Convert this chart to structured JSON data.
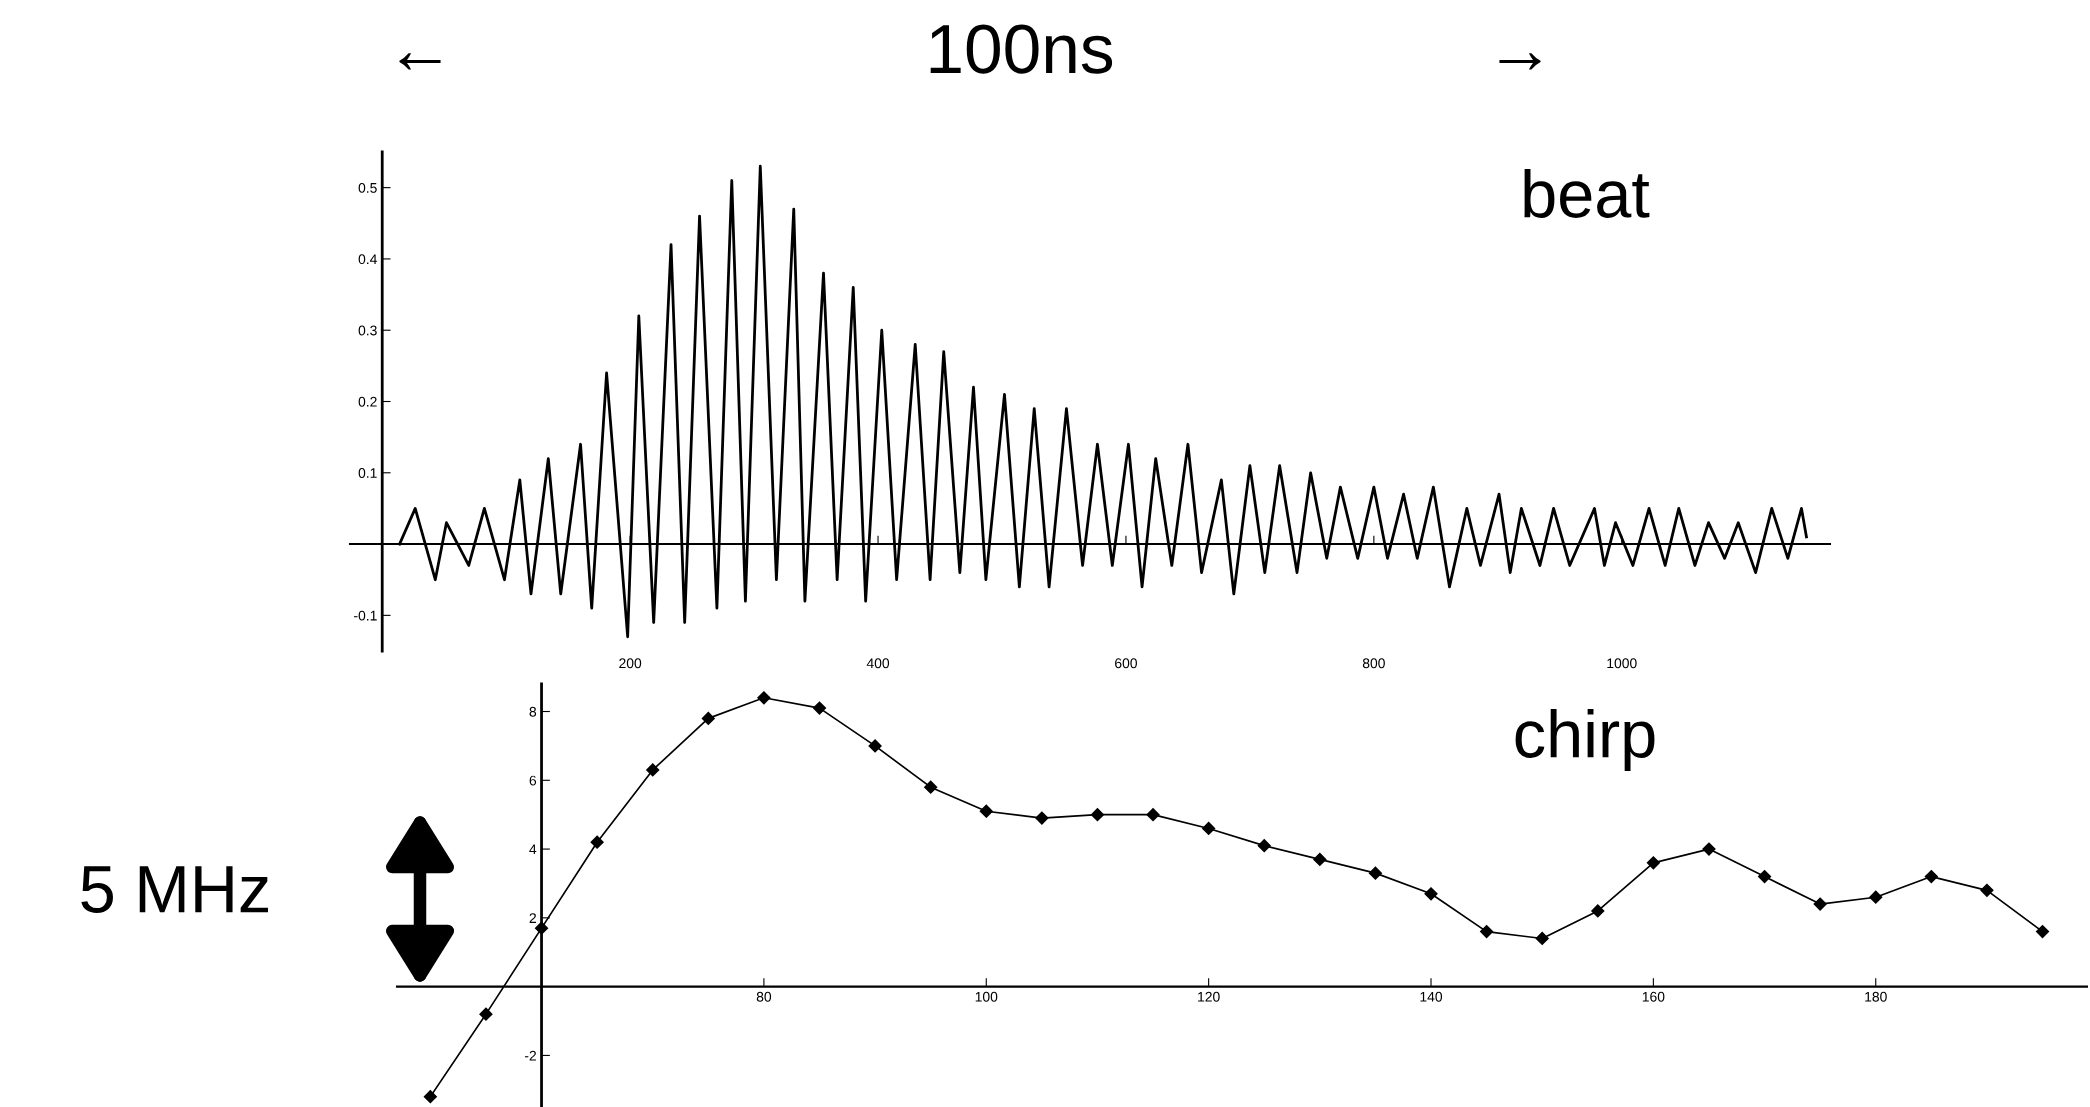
{
  "chart_data": [
    {
      "type": "line",
      "annotations": [
        "←",
        "100ns",
        "→",
        "beat"
      ],
      "x": [
        14,
        26.6,
        42.8,
        51.8,
        69.8,
        82.4,
        98.6,
        111,
        120,
        134,
        144,
        160,
        169,
        181,
        198,
        207,
        219,
        233,
        244,
        256,
        270,
        282,
        293,
        305,
        318,
        332,
        341,
        356,
        367,
        380,
        390,
        403,
        415,
        430,
        442,
        453,
        466,
        477,
        487,
        502,
        514,
        526,
        538,
        552,
        565,
        577,
        589,
        602,
        613,
        624,
        637,
        650,
        661,
        677,
        687,
        700,
        712,
        724,
        738,
        749,
        762,
        773,
        787,
        800,
        811,
        824,
        835,
        848,
        861,
        875,
        886,
        901,
        910,
        919,
        934,
        945,
        958,
        978,
        986,
        995,
        1009,
        1022,
        1035,
        1046,
        1059,
        1070,
        1083,
        1094,
        1108,
        1121,
        1134,
        1145,
        1149
      ],
      "series": [
        {
          "color": "#000000",
          "values": [
            0.0,
            0.05,
            -0.05,
            0.03,
            -0.03,
            0.05,
            -0.05,
            0.09,
            -0.07,
            0.12,
            -0.07,
            0.14,
            -0.09,
            0.24,
            -0.13,
            0.32,
            -0.11,
            0.42,
            -0.11,
            0.46,
            -0.09,
            0.51,
            -0.08,
            0.53,
            -0.05,
            0.47,
            -0.08,
            0.38,
            -0.05,
            0.36,
            -0.08,
            0.3,
            -0.05,
            0.28,
            -0.05,
            0.27,
            -0.04,
            0.22,
            -0.05,
            0.21,
            -0.06,
            0.19,
            -0.06,
            0.19,
            -0.03,
            0.14,
            -0.03,
            0.14,
            -0.06,
            0.12,
            -0.03,
            0.14,
            -0.04,
            0.09,
            -0.07,
            0.11,
            -0.04,
            0.11,
            -0.04,
            0.1,
            -0.02,
            0.08,
            -0.02,
            0.08,
            -0.02,
            0.07,
            -0.02,
            0.08,
            -0.06,
            0.05,
            -0.03,
            0.07,
            -0.04,
            0.05,
            -0.03,
            0.05,
            -0.03,
            0.05,
            -0.03,
            0.03,
            -0.03,
            0.05,
            -0.03,
            0.05,
            -0.03,
            0.03,
            -0.02,
            0.03,
            -0.04,
            0.05,
            -0.02,
            0.05,
            0.01
          ]
        }
      ],
      "xlim": [
        -26,
        1168
      ],
      "ylim": [
        -0.15,
        0.55
      ],
      "xticks": [
        200,
        400,
        600,
        800,
        1000
      ],
      "yticks": [
        -0.1,
        0.1,
        0.2,
        0.3,
        0.4,
        0.5
      ],
      "grid": false,
      "legend": false,
      "marker": "none",
      "line_style": "solid"
    },
    {
      "type": "line",
      "annotations": [
        "chirp",
        "5 MHz"
      ],
      "x": [
        50,
        55,
        60,
        65,
        70,
        75,
        80,
        85,
        90,
        95,
        100,
        105,
        110,
        115,
        120,
        125,
        130,
        135,
        140,
        145,
        150,
        155,
        160,
        165,
        170,
        175,
        180,
        185,
        190,
        195
      ],
      "series": [
        {
          "color": "#000000",
          "values": [
            -3.2,
            -0.8,
            1.7,
            4.2,
            6.3,
            7.8,
            8.4,
            8.1,
            7.0,
            5.8,
            5.1,
            4.9,
            5.0,
            5.0,
            4.6,
            4.1,
            3.7,
            3.3,
            2.7,
            1.6,
            1.4,
            2.2,
            3.6,
            4.0,
            3.2,
            2.4,
            2.6,
            3.2,
            2.8,
            1.6
          ]
        }
      ],
      "xlim": [
        47,
        199
      ],
      "ylim": [
        -3.5,
        8.8
      ],
      "xticks": [
        80,
        100,
        120,
        140,
        160,
        180
      ],
      "yticks": [
        -2,
        2,
        4,
        6,
        8
      ],
      "grid": false,
      "legend": false,
      "marker": "diamond",
      "line_style": "solid"
    }
  ]
}
